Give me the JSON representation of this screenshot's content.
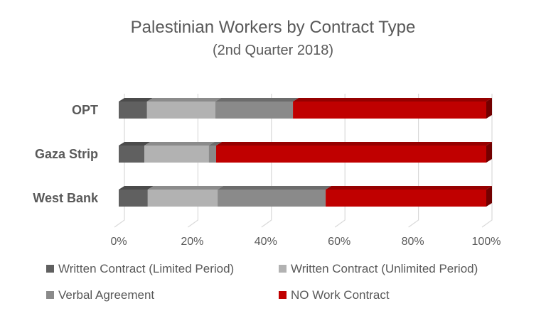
{
  "chart_data": {
    "type": "bar",
    "orientation": "horizontal",
    "stacked": "percent",
    "style": "3d",
    "title": "Palestinian Workers by Contract Type",
    "subtitle": "(2nd Quarter 2018)",
    "categories": [
      "OPT",
      "Gaza Strip",
      "West Bank"
    ],
    "series": [
      {
        "name": "Written Contract (Limited Period)",
        "color": "#606060",
        "values": [
          7.7,
          7.0,
          7.9
        ]
      },
      {
        "name": "Written Contract (Unlimited Period)",
        "color": "#B2B2B2",
        "values": [
          18.6,
          17.5,
          19.0
        ]
      },
      {
        "name": "Verbal Agreement",
        "color": "#8A8A8A",
        "values": [
          21.1,
          2.0,
          29.4
        ]
      },
      {
        "name": "NO Work Contract",
        "color": "#C00000",
        "values": [
          52.6,
          73.5,
          43.7
        ]
      }
    ],
    "xlim": [
      0,
      100
    ],
    "xticks": [
      "0%",
      "20%",
      "40%",
      "60%",
      "80%",
      "100%"
    ],
    "grid": true,
    "legend": "bottom"
  }
}
